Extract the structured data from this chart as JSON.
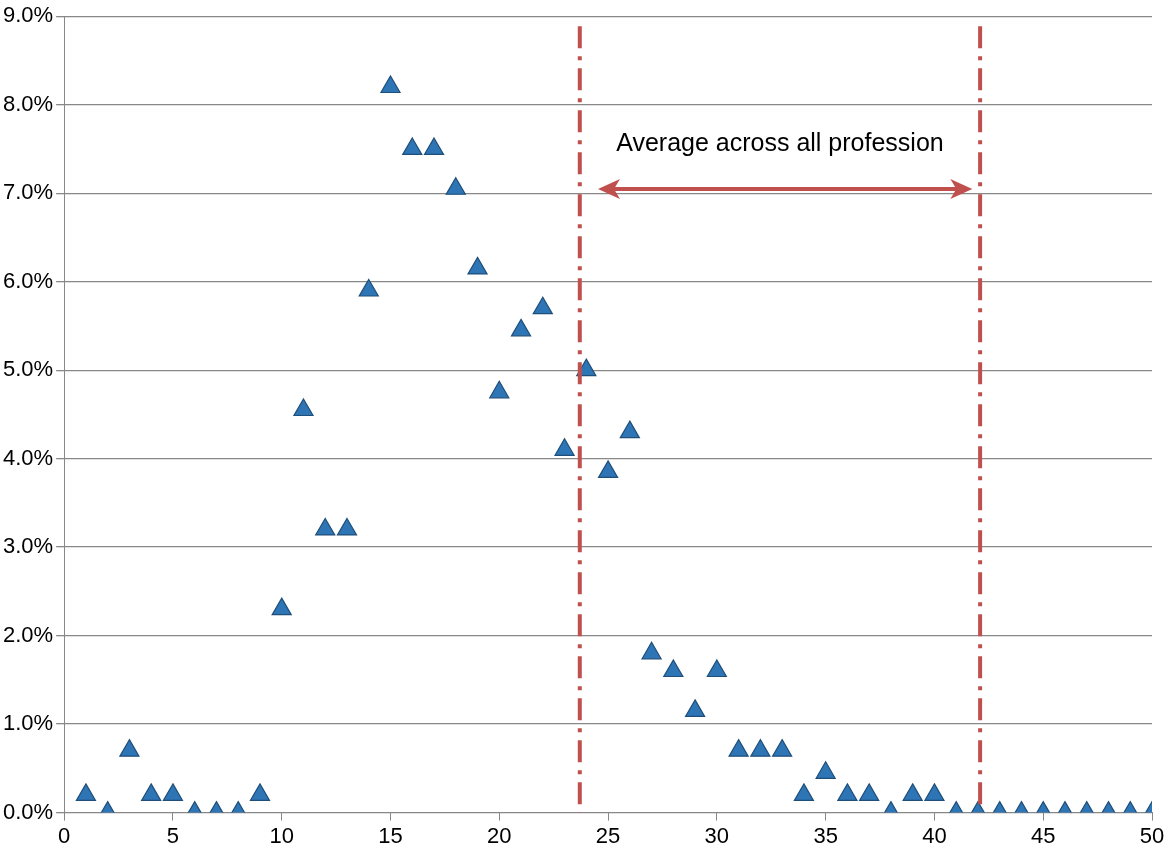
{
  "chart_data": {
    "type": "scatter",
    "marker": "triangle",
    "grid": "y",
    "legend": false,
    "x": [
      1,
      2,
      3,
      4,
      5,
      6,
      7,
      8,
      9,
      10,
      11,
      12,
      13,
      14,
      15,
      16,
      17,
      18,
      19,
      20,
      21,
      22,
      23,
      24,
      25,
      26,
      27,
      28,
      29,
      30,
      31,
      32,
      33,
      34,
      35,
      36,
      37,
      38,
      39,
      40,
      41,
      42,
      43,
      44,
      45,
      46,
      47,
      48,
      49,
      50
    ],
    "series": [
      {
        "color": "#2e75b6",
        "values": [
          0.2,
          0,
          0.7,
          0.2,
          0.2,
          0,
          0,
          0,
          0.2,
          2.3,
          4.55,
          3.2,
          3.2,
          5.9,
          8.2,
          7.5,
          7.5,
          7.05,
          6.15,
          4.75,
          5.45,
          5.7,
          4.1,
          5.0,
          3.85,
          4.3,
          1.8,
          1.6,
          1.15,
          1.6,
          0.7,
          0.7,
          0.7,
          0.2,
          0.45,
          0.2,
          0.2,
          0,
          0.2,
          0.2,
          0,
          0,
          0,
          0,
          0,
          0,
          0,
          0,
          0,
          0
        ]
      }
    ],
    "xlim": [
      0,
      50
    ],
    "xticks": [
      0,
      5,
      10,
      15,
      20,
      25,
      30,
      35,
      40,
      45,
      50
    ],
    "ylim": [
      0,
      9
    ],
    "yticks": [
      {
        "value": 0,
        "label": "0.0%"
      },
      {
        "value": 1,
        "label": "1.0%"
      },
      {
        "value": 2,
        "label": "2.0%"
      },
      {
        "value": 3,
        "label": "3.0%"
      },
      {
        "value": 4,
        "label": "4.0%"
      },
      {
        "value": 5,
        "label": "5.0%"
      },
      {
        "value": 6,
        "label": "6.0%"
      },
      {
        "value": 7,
        "label": "7.0%"
      },
      {
        "value": 8,
        "label": "8.0%"
      },
      {
        "value": 9,
        "label": "9.0%"
      }
    ],
    "ref_lines": [
      {
        "axis": "x",
        "value": 23.7,
        "color": "#c0504d",
        "line_style": "dashed"
      },
      {
        "axis": "x",
        "value": 42.1,
        "color": "#c0504d",
        "line_style": "dashed"
      }
    ],
    "annotations": [
      "Average across all profession"
    ]
  }
}
